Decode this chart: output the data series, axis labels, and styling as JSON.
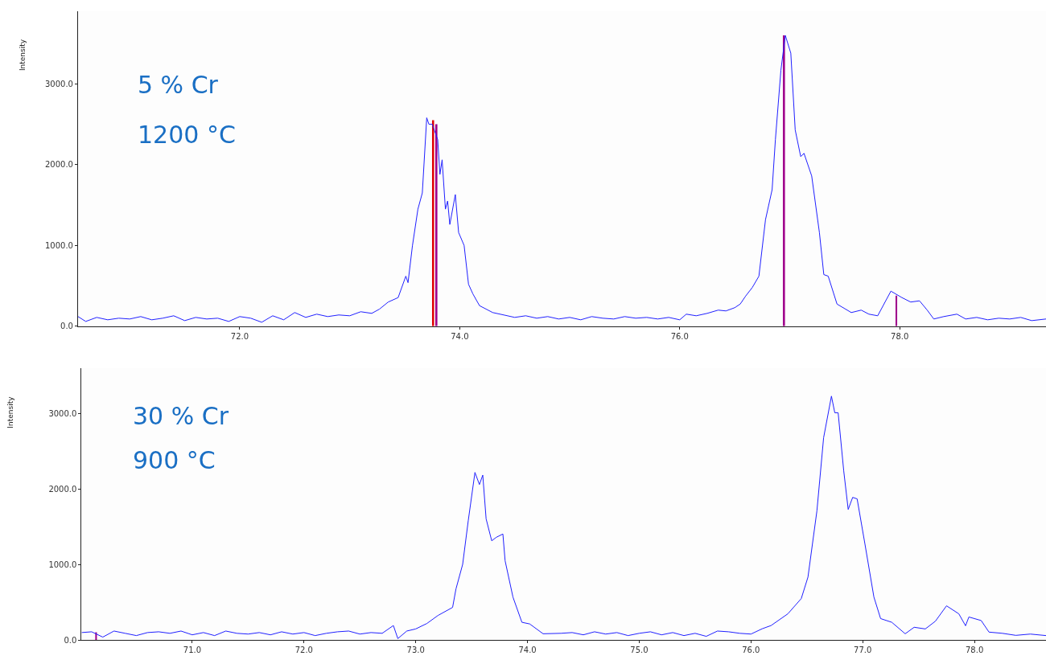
{
  "chart_data": [
    {
      "type": "line",
      "ylabel": "Intensity",
      "annotations": [
        "5 % Cr",
        "1200 °C"
      ],
      "xlim": [
        70.53,
        79.33
      ],
      "ylim": [
        0,
        3900
      ],
      "xticks": [
        {
          "value": 72,
          "label": "72.0"
        },
        {
          "value": 74,
          "label": "74.0"
        },
        {
          "value": 76,
          "label": "76.0"
        },
        {
          "value": 78,
          "label": "78.0"
        }
      ],
      "yticks": [
        {
          "value": 0,
          "label": "0.0"
        },
        {
          "value": 1000,
          "label": "1000.0"
        },
        {
          "value": 2000,
          "label": "2000.0"
        },
        {
          "value": 3000,
          "label": "3000.0"
        }
      ],
      "series": [
        {
          "color": "#2020ff",
          "x": [
            70.53,
            70.6,
            70.7,
            70.8,
            70.9,
            71.0,
            71.1,
            71.2,
            71.3,
            71.4,
            71.5,
            71.6,
            71.7,
            71.8,
            71.9,
            72.0,
            72.1,
            72.2,
            72.3,
            72.4,
            72.5,
            72.6,
            72.7,
            72.8,
            72.9,
            73.0,
            73.1,
            73.2,
            73.27,
            73.35,
            73.44,
            73.51,
            73.53,
            73.57,
            73.62,
            73.66,
            73.7,
            73.72,
            73.75,
            73.8,
            73.82,
            73.84,
            73.87,
            73.89,
            73.91,
            73.96,
            73.99,
            74.04,
            74.08,
            74.12,
            74.18,
            74.3,
            74.4,
            74.5,
            74.6,
            74.7,
            74.8,
            74.9,
            75.0,
            75.1,
            75.2,
            75.3,
            75.4,
            75.5,
            75.6,
            75.7,
            75.8,
            75.9,
            76.0,
            76.06,
            76.15,
            76.25,
            76.35,
            76.42,
            76.5,
            76.55,
            76.6,
            76.66,
            76.72,
            76.78,
            76.84,
            76.87,
            76.92,
            76.96,
            77.01,
            77.05,
            77.1,
            77.13,
            77.2,
            77.27,
            77.31,
            77.35,
            77.43,
            77.56,
            77.65,
            77.72,
            77.8,
            77.92,
            78.02,
            78.1,
            78.18,
            78.25,
            78.31,
            78.4,
            78.52,
            78.6,
            78.7,
            78.8,
            78.9,
            79.0,
            79.1,
            79.2,
            79.33
          ],
          "values": [
            120,
            60,
            110,
            80,
            100,
            90,
            120,
            80,
            100,
            130,
            70,
            110,
            90,
            100,
            60,
            120,
            100,
            50,
            130,
            80,
            170,
            110,
            150,
            120,
            140,
            130,
            180,
            160,
            212,
            300,
            355,
            620,
            540,
            995,
            1450,
            1650,
            2580,
            2500,
            2500,
            2310,
            1880,
            2060,
            1450,
            1550,
            1260,
            1630,
            1160,
            1000,
            520,
            400,
            255,
            170,
            140,
            110,
            130,
            100,
            120,
            90,
            110,
            80,
            120,
            100,
            90,
            120,
            100,
            110,
            90,
            110,
            80,
            150,
            130,
            160,
            200,
            190,
            230,
            275,
            375,
            480,
            620,
            1320,
            1690,
            2310,
            3170,
            3600,
            3380,
            2430,
            2100,
            2140,
            1860,
            1160,
            640,
            620,
            275,
            170,
            200,
            150,
            130,
            435,
            355,
            300,
            315,
            200,
            90,
            120,
            150,
            90,
            110,
            80,
            100,
            90,
            110,
            70,
            90
          ]
        },
        {
          "type": "bar",
          "color": "#e00000",
          "x": [
            73.76
          ],
          "values": [
            2550
          ]
        },
        {
          "type": "bar",
          "color": "#a0008c",
          "x": [
            73.79,
            76.95,
            77.97
          ],
          "values": [
            2500,
            3600,
            380
          ]
        }
      ]
    },
    {
      "type": "line",
      "ylabel": "Intensity",
      "annotations": [
        "30 % Cr",
        "900 °C"
      ],
      "xlim": [
        70.01,
        78.64
      ],
      "ylim": [
        0,
        3600
      ],
      "xticks": [
        {
          "value": 71,
          "label": "71.0"
        },
        {
          "value": 72,
          "label": "72.0"
        },
        {
          "value": 73,
          "label": "73.0"
        },
        {
          "value": 74,
          "label": "74.0"
        },
        {
          "value": 75,
          "label": "75.0"
        },
        {
          "value": 76,
          "label": "76.0"
        },
        {
          "value": 77,
          "label": "77.0"
        },
        {
          "value": 78,
          "label": "78.0"
        }
      ],
      "yticks": [
        {
          "value": 0,
          "label": "0.0"
        },
        {
          "value": 1000,
          "label": "1000.0"
        },
        {
          "value": 2000,
          "label": "2000.0"
        },
        {
          "value": 3000,
          "label": "3000.0"
        }
      ],
      "series": [
        {
          "color": "#2020ff",
          "x": [
            70.01,
            70.1,
            70.2,
            70.3,
            70.4,
            70.5,
            70.6,
            70.7,
            70.8,
            70.9,
            71.0,
            71.1,
            71.2,
            71.3,
            71.4,
            71.5,
            71.6,
            71.7,
            71.8,
            71.9,
            72.0,
            72.1,
            72.2,
            72.3,
            72.4,
            72.5,
            72.6,
            72.7,
            72.8,
            72.84,
            72.92,
            73.0,
            73.1,
            73.2,
            73.33,
            73.36,
            73.42,
            73.47,
            73.53,
            73.57,
            73.6,
            73.63,
            73.68,
            73.72,
            73.78,
            73.8,
            73.87,
            73.95,
            74.02,
            74.14,
            74.3,
            74.4,
            74.5,
            74.6,
            74.7,
            74.8,
            74.9,
            75.0,
            75.1,
            75.2,
            75.3,
            75.4,
            75.5,
            75.6,
            75.7,
            75.8,
            75.9,
            76.0,
            76.1,
            76.18,
            76.33,
            76.45,
            76.51,
            76.59,
            76.65,
            76.72,
            76.75,
            76.78,
            76.83,
            76.87,
            76.91,
            76.95,
            77.02,
            77.1,
            77.16,
            77.26,
            77.38,
            77.46,
            77.56,
            77.65,
            77.75,
            77.86,
            77.92,
            77.95,
            78.06,
            78.13,
            78.25,
            78.37,
            78.5,
            78.64
          ],
          "values": [
            100,
            110,
            40,
            120,
            90,
            60,
            100,
            110,
            90,
            120,
            70,
            100,
            60,
            120,
            90,
            80,
            100,
            70,
            110,
            80,
            100,
            60,
            90,
            110,
            120,
            80,
            100,
            90,
            193,
            20,
            120,
            148,
            220,
            327,
            433,
            676,
            1003,
            1580,
            2220,
            2060,
            2185,
            1605,
            1315,
            1360,
            1405,
            1050,
            570,
            236,
            214,
            84,
            90,
            100,
            70,
            110,
            80,
            100,
            60,
            90,
            110,
            70,
            100,
            60,
            90,
            50,
            120,
            110,
            90,
            80,
            150,
            193,
            348,
            550,
            834,
            1710,
            2680,
            3230,
            3010,
            3010,
            2240,
            1730,
            1890,
            1870,
            1270,
            570,
            285,
            236,
            84,
            170,
            148,
            250,
            454,
            348,
            190,
            306,
            259,
            106,
            90,
            63,
            80,
            60
          ]
        },
        {
          "type": "bar",
          "color": "#a0008c",
          "x": [
            70.14
          ],
          "values": [
            105
          ]
        }
      ]
    }
  ]
}
